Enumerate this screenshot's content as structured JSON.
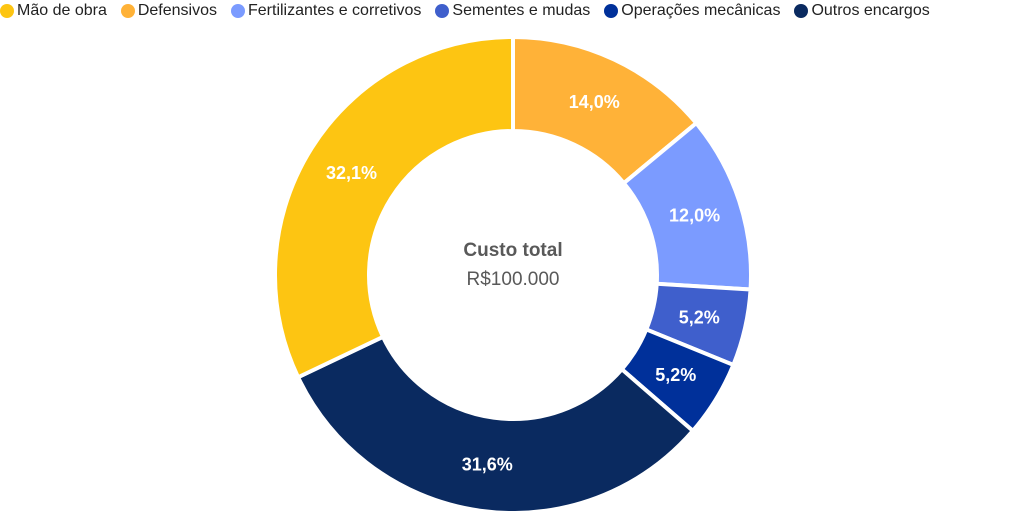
{
  "chart_data": {
    "type": "pie",
    "subtype": "donut",
    "title": "",
    "center_label": {
      "title": "Custo total",
      "value": "R$100.000"
    },
    "categories": [
      "Defensivos",
      "Fertilizantes e corretivos",
      "Sementes e mudas",
      "Operações mecânicas",
      "Outros encargos",
      "Mão de obra"
    ],
    "values": [
      14.0,
      12.0,
      5.2,
      5.2,
      31.6,
      32.1
    ],
    "labels": [
      "14,0%",
      "12,0%",
      "5,2%",
      "5,2%",
      "31,6%",
      "32,1%"
    ],
    "colors": [
      "#FFB238",
      "#7B9BFF",
      "#3F5FCC",
      "#00309A",
      "#0A2A60",
      "#FDC512"
    ],
    "legend_order": [
      "Mão de obra",
      "Defensivos",
      "Fertilizantes e corretivos",
      "Sementes e mudas",
      "Operações mecânicas",
      "Outros encargos"
    ],
    "legend_position": "top",
    "unit": "%"
  },
  "legend": [
    {
      "label": "Mão de obra",
      "color": "#FDC512"
    },
    {
      "label": "Defensivos",
      "color": "#FFB238"
    },
    {
      "label": "Fertilizantes e corretivos",
      "color": "#7B9BFF"
    },
    {
      "label": "Sementes e mudas",
      "color": "#3F5FCC"
    },
    {
      "label": "Operações mecânicas",
      "color": "#00309A"
    },
    {
      "label": "Outros encargos",
      "color": "#0A2A60"
    }
  ],
  "center": {
    "title": "Custo total",
    "value": "R$100.000"
  }
}
